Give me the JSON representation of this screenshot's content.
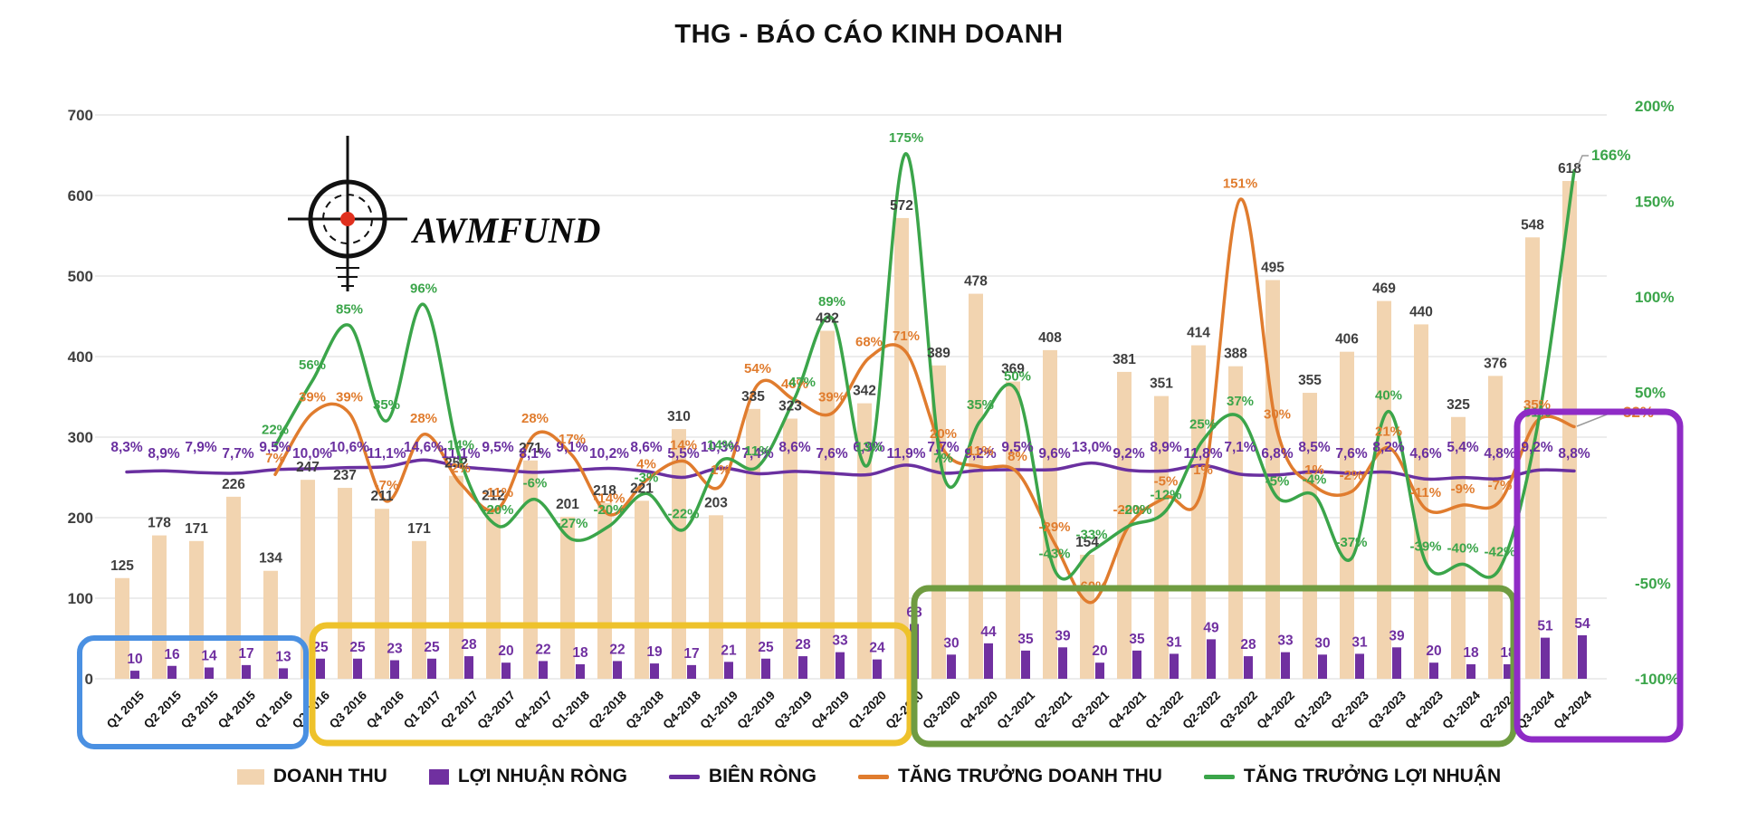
{
  "title": "THG - BÁO CÁO KINH DOANH",
  "logo": {
    "text": "AWMFUND"
  },
  "axes": {
    "left_ticks": [
      "700",
      "600",
      "500",
      "400",
      "300",
      "200",
      "100",
      "0"
    ],
    "right_ticks": [
      "200%",
      "150%",
      "100%",
      "50%",
      "-50%",
      "-100%"
    ]
  },
  "callouts": {
    "profit_growth_final": "166%",
    "revenue_growth_final": "32%"
  },
  "colors": {
    "revenue": "#F2D4B0",
    "profit": "#7030A0",
    "margin_line": "#6A30A0",
    "revenue_growth": "#E07C2E",
    "profit_growth": "#3BA54A",
    "grid": "#DADADA",
    "axis_text": "#3F3F3F",
    "x_label_text": "#141414",
    "logo_red": "#E0301E",
    "logo_black": "#111111",
    "box_blue": "#4A90E2",
    "box_yellow": "#EEC22B",
    "box_green": "#6F9C41",
    "box_purple": "#8F2BC6"
  },
  "legend": [
    {
      "label": "DOANH THU",
      "type": "bar",
      "color": "#F2D4B0"
    },
    {
      "label": "LỢI NHUẬN RÒNG",
      "type": "bar-narrow",
      "color": "#7030A0"
    },
    {
      "label": "BIÊN RÒNG",
      "type": "line",
      "color": "#6A30A0"
    },
    {
      "label": "TĂNG TRƯỞNG DOANH THU",
      "type": "line",
      "color": "#E07C2E"
    },
    {
      "label": "TĂNG TRƯỞNG LỢI NHUẬN",
      "type": "line",
      "color": "#3BA54A"
    }
  ],
  "highlight_boxes": [
    {
      "name": "box-blue",
      "color": "#4A90E2",
      "from": "Q1 2015",
      "to": "Q1 2016"
    },
    {
      "name": "box-yellow",
      "color": "#EEC22B",
      "from": "Q2 2016",
      "to": "Q2-2020"
    },
    {
      "name": "box-green",
      "color": "#6F9C41",
      "from": "Q3-2020",
      "to": "Q2-2024"
    },
    {
      "name": "box-purple",
      "color": "#8F2BC6",
      "from": "Q3-2024",
      "to": "Q4-2024"
    }
  ],
  "chart_data": {
    "type": "combo",
    "title": "THG - BÁO CÁO KINH DOANH",
    "left_axis_range": [
      0,
      700
    ],
    "right_axis_range": [
      -100,
      200
    ],
    "grid": true,
    "legend_position": "bottom",
    "categories": [
      "Q1 2015",
      "Q2 2015",
      "Q3 2015",
      "Q4 2015",
      "Q1 2016",
      "Q2 2016",
      "Q3 2016",
      "Q4 2016",
      "Q1 2017",
      "Q2 2017",
      "Q3-2017",
      "Q4-2017",
      "Q1-2018",
      "Q2-2018",
      "Q3-2018",
      "Q4-2018",
      "Q1-2019",
      "Q2-2019",
      "Q3-2019",
      "Q4-2019",
      "Q1-2020",
      "Q2-2020",
      "Q3-2020",
      "Q4-2020",
      "Q1-2021",
      "Q2-2021",
      "Q3-2021",
      "Q4-2021",
      "Q1-2022",
      "Q2-2022",
      "Q3-2022",
      "Q4-2022",
      "Q1-2023",
      "Q2-2023",
      "Q3-2023",
      "Q4-2023",
      "Q1-2024",
      "Q2-2024",
      "Q3-2024",
      "Q4-2024"
    ],
    "series": [
      {
        "name": "DOANH THU",
        "type": "bar",
        "axis": "left",
        "values": [
          125,
          178,
          171,
          226,
          134,
          247,
          237,
          211,
          171,
          252,
          212,
          271,
          201,
          218,
          221,
          310,
          203,
          335,
          323,
          432,
          342,
          572,
          389,
          478,
          369,
          408,
          154,
          381,
          351,
          414,
          388,
          495,
          355,
          406,
          469,
          440,
          325,
          376,
          548,
          618
        ]
      },
      {
        "name": "LỢI NHUẬN RÒNG",
        "type": "bar",
        "axis": "left",
        "values": [
          10,
          16,
          14,
          17,
          13,
          25,
          25,
          23,
          25,
          28,
          20,
          22,
          18,
          22,
          19,
          17,
          21,
          25,
          28,
          33,
          24,
          68,
          30,
          44,
          35,
          39,
          20,
          35,
          31,
          49,
          28,
          33,
          30,
          31,
          39,
          20,
          18,
          18,
          51,
          54
        ]
      },
      {
        "name": "BIÊN RÒNG",
        "type": "line",
        "axis": "right",
        "unit": "percent",
        "values": [
          8.3,
          8.9,
          7.9,
          7.7,
          9.5,
          10,
          10.6,
          11.1,
          14.6,
          11.1,
          9.5,
          8.1,
          9.1,
          10.2,
          8.6,
          5.5,
          10.3,
          7.4,
          8.6,
          7.6,
          6.9,
          11.9,
          7.7,
          9.2,
          9.5,
          9.6,
          13,
          9.2,
          8.9,
          11.8,
          7.1,
          6.8,
          8.5,
          7.6,
          8.2,
          4.6,
          5.4,
          4.8,
          9.2,
          8.8
        ],
        "labels": [
          "8,3%",
          "8,9%",
          "7,9%",
          "7,7%",
          "9,5%",
          "10,0%",
          "10,6%",
          "11,1%",
          "14,6%",
          "11,1%",
          "9,5%",
          "8,1%",
          "9,1%",
          "10,2%",
          "8,6%",
          "5,5%",
          "10,3%",
          "7,4%",
          "8,6%",
          "7,6%",
          "6,9%",
          "11,9%",
          "7,7%",
          "9,2%",
          "9,5%",
          "9,6%",
          "13,0%",
          "9,2%",
          "8,9%",
          "11,8%",
          "7,1%",
          "6,8%",
          "8,5%",
          "7,6%",
          "8,2%",
          "4,6%",
          "5,4%",
          "4,8%",
          "9,2%",
          "8,8%"
        ]
      },
      {
        "name": "TĂNG TRƯỞNG DOANH THU",
        "type": "line",
        "axis": "right",
        "unit": "percent",
        "values": [
          null,
          null,
          null,
          null,
          7,
          39,
          39,
          -7,
          28,
          2,
          -11,
          28,
          17,
          -14,
          4,
          14,
          1,
          54,
          46,
          39,
          68,
          71,
          20,
          11,
          8,
          -29,
          -60,
          -20,
          -5,
          1,
          151,
          30,
          1,
          -2,
          21,
          -11,
          -9,
          -7,
          35,
          32
        ],
        "labels": [
          null,
          null,
          null,
          null,
          "7%",
          "39%",
          "39%",
          "-7%",
          "28%",
          "2%",
          "-11%",
          "28%",
          "17%",
          "-14%",
          "4%",
          "14%",
          "1%",
          "54%",
          "46%",
          "39%",
          "68%",
          "71%",
          "20%",
          "11%",
          "8%",
          "-29%",
          "-60%",
          "-20%",
          "-5%",
          "1%",
          "151%",
          "30%",
          "1%",
          "-2%",
          "21%",
          "-11%",
          "-9%",
          "-7%",
          "35%",
          "32%"
        ]
      },
      {
        "name": "TĂNG TRƯỞNG LỢI NHUẬN",
        "type": "line",
        "axis": "right",
        "unit": "percent",
        "values": [
          null,
          null,
          null,
          null,
          22,
          56,
          85,
          35,
          96,
          14,
          -20,
          -6,
          -27,
          -20,
          -3,
          -22,
          14,
          11,
          47,
          89,
          13,
          175,
          7,
          35,
          50,
          -43,
          -33,
          -20,
          -12,
          25,
          37,
          -5,
          -4,
          -37,
          40,
          -39,
          -40,
          -42,
          31,
          166
        ],
        "labels": [
          null,
          null,
          null,
          null,
          "22%",
          "56%",
          "85%",
          "35%",
          "96%",
          "14%",
          "-20%",
          "-6%",
          "-27%",
          "-20%",
          "-3%",
          "-22%",
          "14%",
          "11%",
          "47%",
          "89%",
          "13%",
          "175%",
          "7%",
          "35%",
          "50%",
          "-43%",
          "-33%",
          "-20%",
          "-12%",
          "25%",
          "37%",
          "-5%",
          "-4%",
          "-37%",
          "40%",
          "-39%",
          "-40%",
          "-42%",
          "31%",
          "166%"
        ]
      }
    ]
  }
}
